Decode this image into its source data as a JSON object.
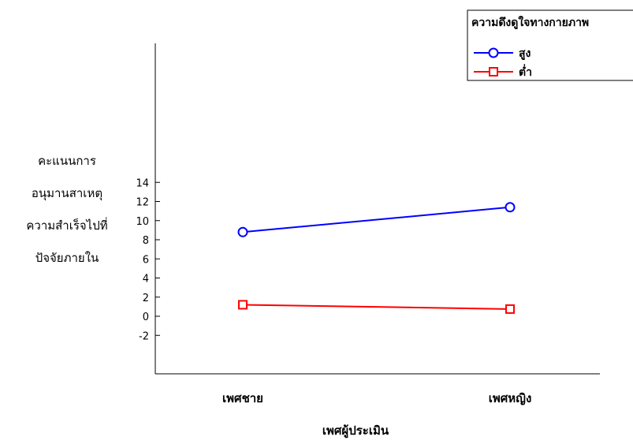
{
  "chart_data": {
    "type": "line",
    "title": "",
    "x": [
      "เพศชาย",
      "เพศหญิง"
    ],
    "xlabel": "เพศผู้ประเมิน",
    "ylabel_lines": [
      "คะแนนการ",
      "อนุมานสาเหตุ",
      "ความสำเร็จไปที่",
      "ปัจจัยภายใน"
    ],
    "ylim": [
      -3,
      14.5
    ],
    "yticks": [
      14,
      12,
      10,
      8,
      6,
      4,
      2,
      0,
      -2
    ],
    "grid": false,
    "legend": {
      "title": "ความดึงดูใจทางกายภาพ",
      "placement": "top-right"
    },
    "series": [
      {
        "name": "สูง",
        "values": [
          8.8,
          11.4
        ],
        "color": "#0000ff",
        "marker": "circle"
      },
      {
        "name": "ต่ำ",
        "values": [
          1.2,
          0.75
        ],
        "color": "#ff0000",
        "marker": "square"
      }
    ]
  }
}
